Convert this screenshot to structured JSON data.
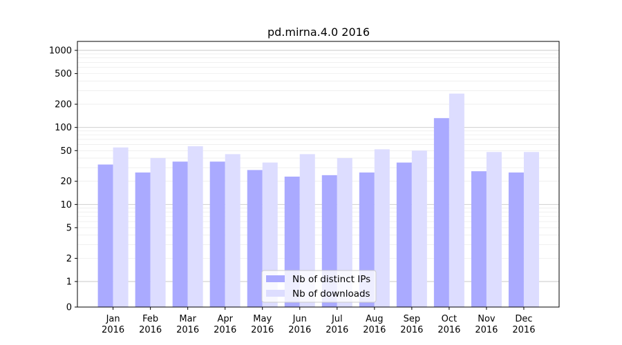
{
  "chart_data": {
    "type": "bar",
    "title": "pd.mirna.4.0 2016",
    "xlabel": "",
    "ylabel": "",
    "y_scale": "symlog",
    "y_ticks": [
      0,
      1,
      2,
      5,
      10,
      20,
      50,
      100,
      200,
      500,
      1000
    ],
    "categories": [
      "Jan\n2016",
      "Feb\n2016",
      "Mar\n2016",
      "Apr\n2016",
      "May\n2016",
      "Jun\n2016",
      "Jul\n2016",
      "Aug\n2016",
      "Sep\n2016",
      "Oct\n2016",
      "Nov\n2016",
      "Dec\n2016"
    ],
    "series": [
      {
        "name": "Nb of distinct IPs",
        "color": "#aaaaff",
        "values": [
          33,
          26,
          36,
          36,
          28,
          23,
          24,
          26,
          35,
          132,
          27,
          26
        ]
      },
      {
        "name": "Nb of downloads",
        "color": "#ddddff",
        "values": [
          55,
          40,
          57,
          45,
          35,
          45,
          40,
          52,
          50,
          275,
          48,
          48
        ]
      }
    ],
    "grid": "horizontal",
    "legend_position": "lower-center"
  }
}
